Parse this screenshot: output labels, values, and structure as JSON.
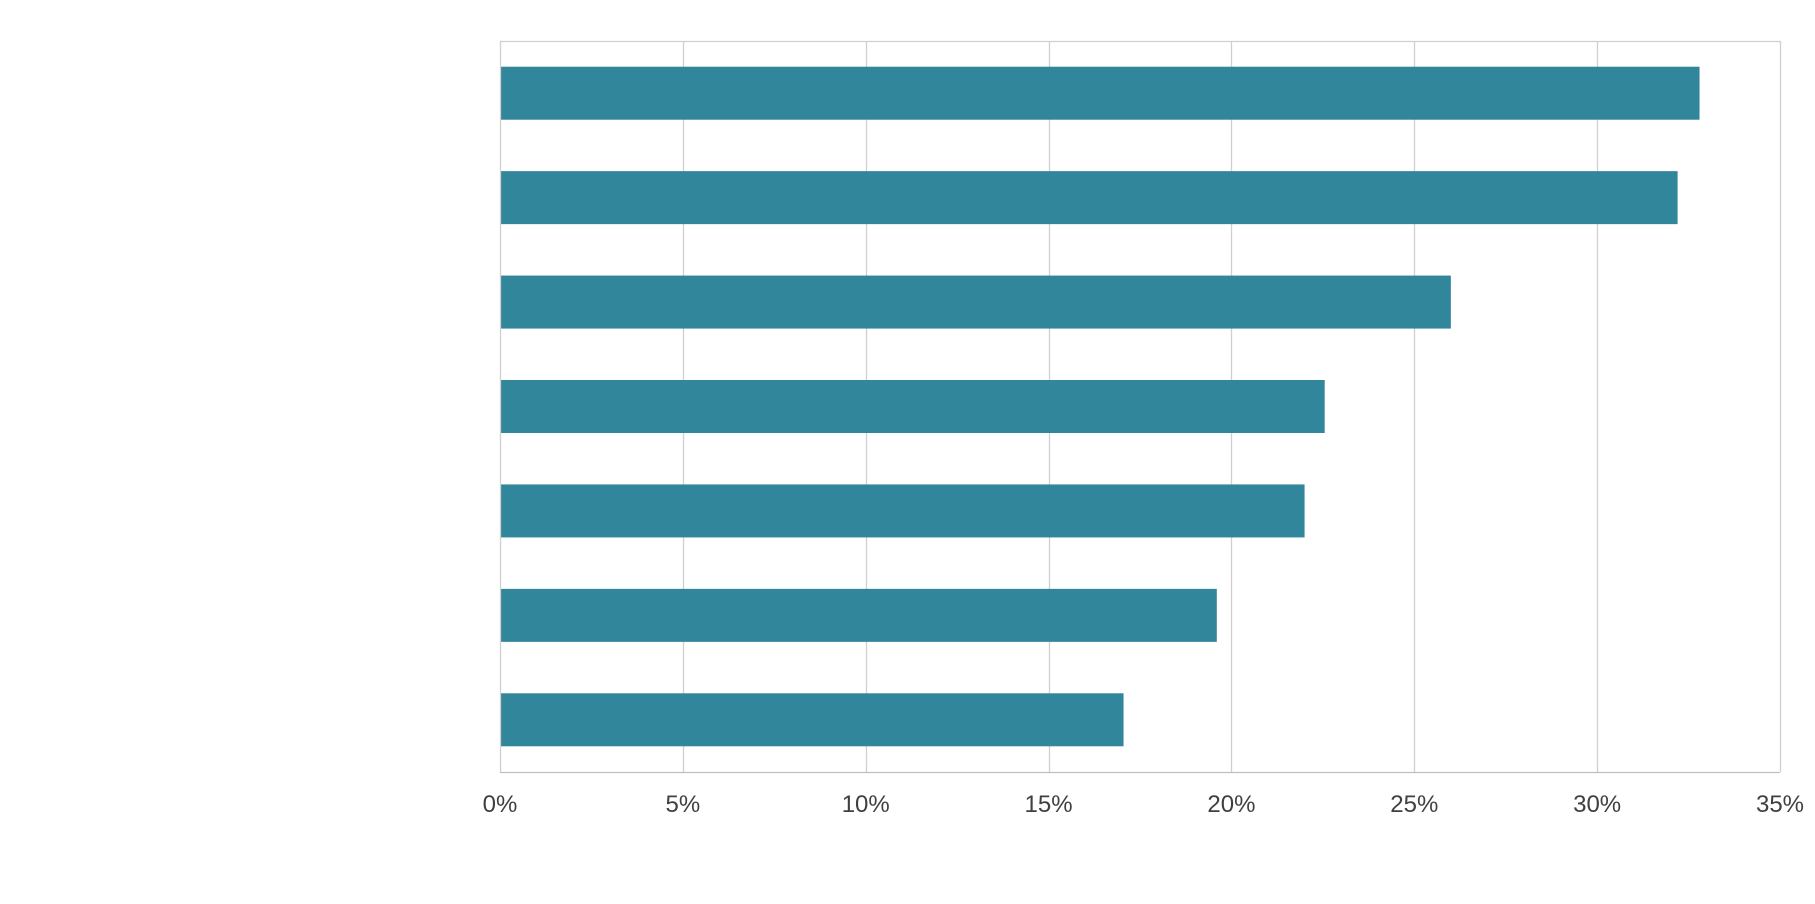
{
  "chart_data": {
    "type": "bar",
    "orientation": "horizontal",
    "categories": [
      "",
      "",
      "",
      "",
      "",
      "",
      ""
    ],
    "values": [
      0.328,
      0.322,
      0.26,
      0.2255,
      0.22,
      0.196,
      0.1705
    ],
    "xlim": [
      0,
      0.35
    ],
    "x_ticks": [
      0,
      0.05,
      0.1,
      0.15,
      0.2,
      0.25,
      0.3,
      0.35
    ],
    "x_tick_labels": [
      "0%",
      "5%",
      "10%",
      "15%",
      "20%",
      "25%",
      "30%",
      "35%"
    ],
    "title": "",
    "xlabel": "",
    "ylabel": "",
    "grid": "vertical",
    "legend": "none",
    "colors": {
      "bar": "#31869B",
      "grid": "#D0D0D0",
      "axis": "#BFBFBF",
      "tick_text": "#404040"
    }
  }
}
